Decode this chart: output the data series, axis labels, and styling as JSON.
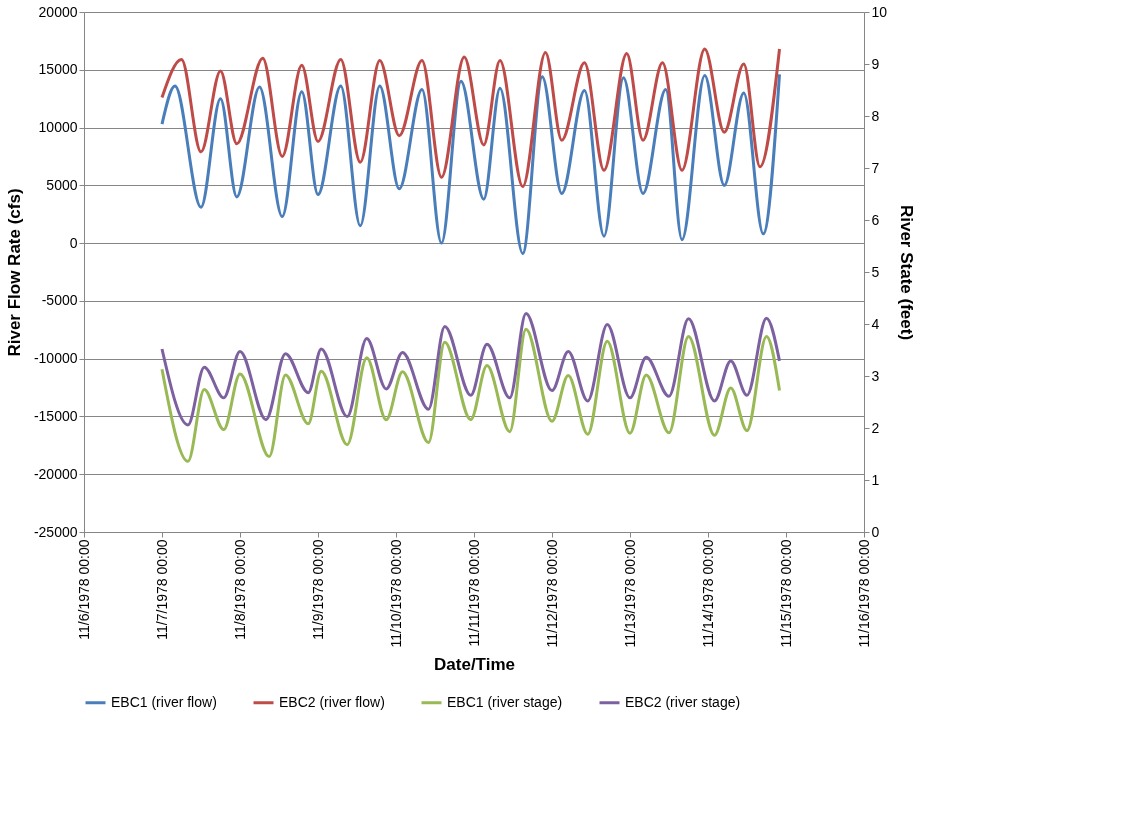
{
  "chart_data": {
    "type": "line",
    "xlabel": "Date/Time",
    "ylabel": "River Flow Rate (cfs)",
    "y2label": "River State (feet)",
    "xlim": [
      "1978-11-06T00:00",
      "1978-11-16T00:00"
    ],
    "xticks": [
      {
        "value": "1978-11-06T00:00",
        "label": "11/6/1978 00:00"
      },
      {
        "value": "1978-11-07T00:00",
        "label": "11/7/1978 00:00"
      },
      {
        "value": "1978-11-08T00:00",
        "label": "11/8/1978 00:00"
      },
      {
        "value": "1978-11-09T00:00",
        "label": "11/9/1978 00:00"
      },
      {
        "value": "1978-11-10T00:00",
        "label": "11/10/1978 00:00"
      },
      {
        "value": "1978-11-11T00:00",
        "label": "11/11/1978 00:00"
      },
      {
        "value": "1978-11-12T00:00",
        "label": "11/12/1978 00:00"
      },
      {
        "value": "1978-11-13T00:00",
        "label": "11/13/1978 00:00"
      },
      {
        "value": "1978-11-14T00:00",
        "label": "11/14/1978 00:00"
      },
      {
        "value": "1978-11-15T00:00",
        "label": "11/15/1978 00:00"
      },
      {
        "value": "1978-11-16T00:00",
        "label": "11/16/1978 00:00"
      }
    ],
    "ylim": [
      -25000,
      20000
    ],
    "yticks": [
      -25000,
      -20000,
      -15000,
      -10000,
      -5000,
      0,
      5000,
      10000,
      15000,
      20000
    ],
    "y2lim": [
      0,
      10
    ],
    "y2ticks": [
      0,
      1,
      2,
      3,
      4,
      5,
      6,
      7,
      8,
      9,
      10
    ],
    "grid": "y",
    "legend": "bottom",
    "marker": "none",
    "line_style": "solid",
    "series": [
      {
        "name": "EBC1 (river flow)",
        "color": "#4a7ebb",
        "axis": "y",
        "x": [
          "1978-11-07T00:00",
          "1978-11-07T04:00",
          "1978-11-07T12:00",
          "1978-11-07T18:00",
          "1978-11-07T23:00",
          "1978-11-08T06:00",
          "1978-11-08T13:00",
          "1978-11-08T19:00",
          "1978-11-09T00:00",
          "1978-11-09T07:00",
          "1978-11-09T13:00",
          "1978-11-09T19:00",
          "1978-11-10T01:00",
          "1978-11-10T08:00",
          "1978-11-10T14:00",
          "1978-11-10T20:00",
          "1978-11-11T03:00",
          "1978-11-11T08:00",
          "1978-11-11T15:00",
          "1978-11-11T21:00",
          "1978-11-12T03:00",
          "1978-11-12T10:00",
          "1978-11-12T16:00",
          "1978-11-12T22:00",
          "1978-11-13T04:00",
          "1978-11-13T11:00",
          "1978-11-13T16:00",
          "1978-11-13T23:00",
          "1978-11-14T05:00",
          "1978-11-14T11:00",
          "1978-11-14T17:00",
          "1978-11-14T22:00"
        ],
        "values": [
          10300,
          13600,
          3100,
          12500,
          4000,
          13500,
          2300,
          13100,
          4200,
          13600,
          1500,
          13600,
          4700,
          13300,
          0,
          14000,
          3800,
          13400,
          -900,
          14400,
          4300,
          13200,
          600,
          14300,
          4300,
          13300,
          300,
          14500,
          5000,
          13000,
          800,
          14600
        ]
      },
      {
        "name": "EBC2 (river flow)",
        "color": "#be4b48",
        "axis": "y",
        "x": [
          "1978-11-07T00:00",
          "1978-11-07T06:00",
          "1978-11-07T12:00",
          "1978-11-07T18:00",
          "1978-11-07T23:00",
          "1978-11-08T07:00",
          "1978-11-08T13:00",
          "1978-11-08T19:00",
          "1978-11-09T00:00",
          "1978-11-09T07:00",
          "1978-11-09T13:00",
          "1978-11-09T19:00",
          "1978-11-10T01:00",
          "1978-11-10T08:00",
          "1978-11-10T14:00",
          "1978-11-10T21:00",
          "1978-11-11T03:00",
          "1978-11-11T08:00",
          "1978-11-11T15:00",
          "1978-11-11T22:00",
          "1978-11-12T03:00",
          "1978-11-12T10:00",
          "1978-11-12T16:00",
          "1978-11-12T23:00",
          "1978-11-13T04:00",
          "1978-11-13T10:00",
          "1978-11-13T16:00",
          "1978-11-13T23:00",
          "1978-11-14T05:00",
          "1978-11-14T11:00",
          "1978-11-14T16:00",
          "1978-11-14T22:00"
        ],
        "values": [
          12600,
          15900,
          7900,
          14900,
          8600,
          16000,
          7500,
          15400,
          8800,
          15900,
          7000,
          15800,
          9300,
          15800,
          5700,
          16100,
          8500,
          15800,
          4900,
          16500,
          8900,
          15600,
          6300,
          16400,
          8900,
          15600,
          6300,
          16800,
          9600,
          15500,
          6600,
          16800
        ]
      },
      {
        "name": "EBC1 (river stage)",
        "color": "#98b954",
        "axis": "y2",
        "x": [
          "1978-11-07T00:00",
          "1978-11-07T08:00",
          "1978-11-07T13:00",
          "1978-11-07T19:00",
          "1978-11-08T00:00",
          "1978-11-08T09:00",
          "1978-11-08T14:00",
          "1978-11-08T21:00",
          "1978-11-09T01:00",
          "1978-11-09T09:00",
          "1978-11-09T15:00",
          "1978-11-09T21:00",
          "1978-11-10T02:00",
          "1978-11-10T10:00",
          "1978-11-10T15:00",
          "1978-11-10T23:00",
          "1978-11-11T04:00",
          "1978-11-11T11:00",
          "1978-11-11T16:00",
          "1978-11-12T00:00",
          "1978-11-12T05:00",
          "1978-11-12T11:00",
          "1978-11-12T17:00",
          "1978-11-13T00:00",
          "1978-11-13T05:00",
          "1978-11-13T12:00",
          "1978-11-13T18:00",
          "1978-11-14T02:00",
          "1978-11-14T07:00",
          "1978-11-14T12:00",
          "1978-11-14T18:00",
          "1978-11-14T22:00"
        ],
        "values": [
          3.13,
          1.36,
          2.74,
          1.97,
          3.04,
          1.45,
          3.02,
          2.08,
          3.09,
          1.68,
          3.35,
          2.16,
          3.08,
          1.72,
          3.65,
          2.16,
          3.2,
          1.93,
          3.9,
          2.13,
          3.01,
          1.88,
          3.67,
          1.9,
          3.02,
          1.91,
          3.76,
          1.86,
          2.77,
          1.95,
          3.76,
          2.72
        ]
      },
      {
        "name": "EBC2 (river stage)",
        "color": "#7d60a0",
        "axis": "y2",
        "x": [
          "1978-11-07T00:00",
          "1978-11-07T08:00",
          "1978-11-07T13:00",
          "1978-11-07T19:00",
          "1978-11-08T00:00",
          "1978-11-08T08:00",
          "1978-11-08T14:00",
          "1978-11-08T21:00",
          "1978-11-09T01:00",
          "1978-11-09T09:00",
          "1978-11-09T15:00",
          "1978-11-09T21:00",
          "1978-11-10T02:00",
          "1978-11-10T10:00",
          "1978-11-10T15:00",
          "1978-11-10T23:00",
          "1978-11-11T04:00",
          "1978-11-11T11:00",
          "1978-11-11T16:00",
          "1978-11-12T00:00",
          "1978-11-12T05:00",
          "1978-11-12T11:00",
          "1978-11-12T17:00",
          "1978-11-13T00:00",
          "1978-11-13T05:00",
          "1978-11-13T12:00",
          "1978-11-13T18:00",
          "1978-11-14T02:00",
          "1978-11-14T07:00",
          "1978-11-14T12:00",
          "1978-11-14T18:00",
          "1978-11-14T22:00"
        ],
        "values": [
          3.52,
          2.06,
          3.17,
          2.58,
          3.47,
          2.16,
          3.43,
          2.68,
          3.52,
          2.22,
          3.72,
          2.75,
          3.45,
          2.36,
          3.95,
          2.63,
          3.61,
          2.58,
          4.2,
          2.72,
          3.47,
          2.52,
          3.99,
          2.58,
          3.36,
          2.61,
          4.1,
          2.52,
          3.29,
          2.63,
          4.11,
          3.29
        ]
      }
    ]
  }
}
